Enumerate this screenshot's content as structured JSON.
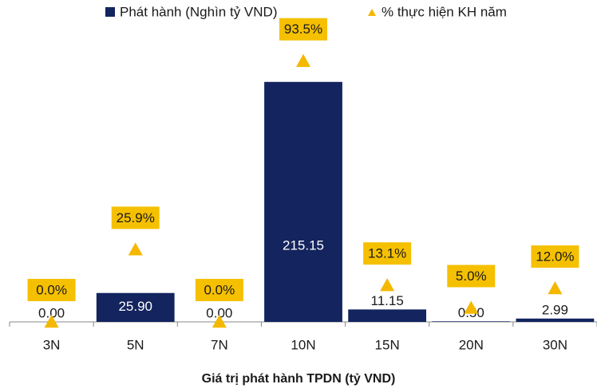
{
  "chart_data": {
    "type": "bar",
    "categories": [
      "3N",
      "5N",
      "7N",
      "10N",
      "15N",
      "20N",
      "30N"
    ],
    "series": [
      {
        "name": "Phát hành (Nghìn tỷ VND)",
        "type": "bar",
        "color": "#13245e",
        "axis": "y",
        "values": [
          0,
          25.9,
          0,
          215.15,
          11.15,
          0.5,
          2.99
        ],
        "value_labels": [
          "0.00",
          "25.90",
          "0.00",
          "215.15",
          "11.15",
          "0.50",
          "2.99"
        ]
      },
      {
        "name": "% thực hiện KH năm",
        "type": "scatter",
        "color": "#f5b800",
        "axis": "y2",
        "values": [
          0,
          25.9,
          0,
          93.5,
          13.1,
          5.0,
          12.0
        ],
        "value_labels": [
          "0.0%",
          "25.9%",
          "0.0%",
          "93.5%",
          "13.1%",
          "5.0%",
          "12.0%"
        ]
      }
    ],
    "ylim": [
      0,
      250
    ],
    "y2lim": [
      0,
      100
    ],
    "xlabel": "Giá trị phát hành TPDN (tỷ VND)"
  }
}
